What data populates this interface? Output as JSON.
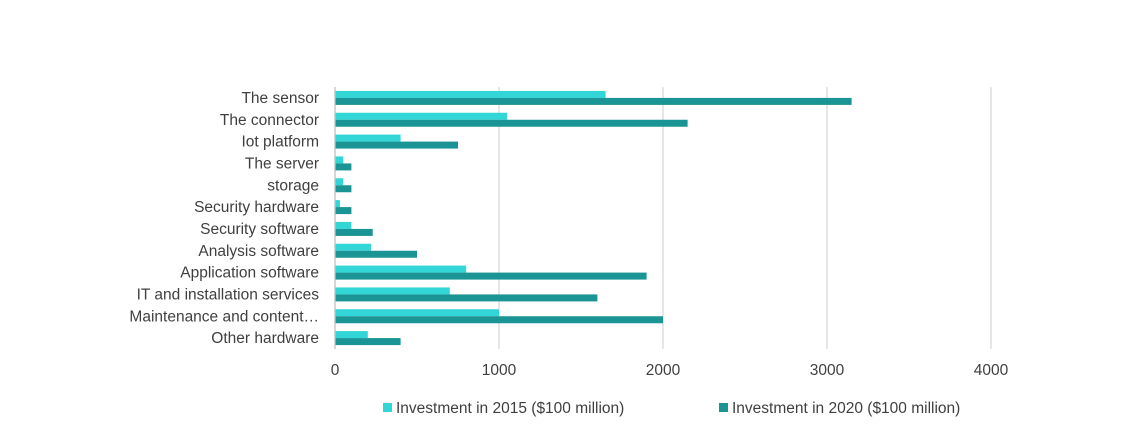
{
  "chart_data": {
    "type": "bar",
    "orientation": "horizontal",
    "categories": [
      "The sensor",
      "The connector",
      "Iot platform",
      "The server",
      "storage",
      "Security hardware",
      "Security software",
      "Analysis software",
      "Application software",
      "IT and installation services",
      "Maintenance and content…",
      "Other hardware"
    ],
    "series": [
      {
        "name": "Investment in 2015 ($100 million)",
        "color": "#33d6d6",
        "values": [
          1650,
          1050,
          400,
          50,
          50,
          30,
          100,
          220,
          800,
          700,
          1000,
          200
        ]
      },
      {
        "name": "Investment in 2020 ($100 million)",
        "color": "#1a9494",
        "values": [
          3150,
          2150,
          750,
          100,
          100,
          100,
          230,
          500,
          1900,
          1600,
          2000,
          400
        ]
      }
    ],
    "xlim": [
      0,
      4000
    ],
    "xticks": [
      0,
      1000,
      2000,
      3000,
      4000
    ],
    "grid": "vertical",
    "legend_position": "bottom"
  }
}
